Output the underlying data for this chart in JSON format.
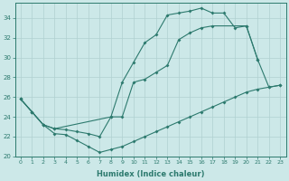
{
  "xlabel": "Humidex (Indice chaleur)",
  "bg_color": "#cce8e8",
  "line_color": "#2d7a6e",
  "grid_color": "#b0d0d0",
  "xlim": [
    -0.5,
    23.5
  ],
  "ylim": [
    20,
    35.5
  ],
  "yticks": [
    20,
    22,
    24,
    26,
    28,
    30,
    32,
    34
  ],
  "xticks": [
    0,
    1,
    2,
    3,
    4,
    5,
    6,
    7,
    8,
    9,
    10,
    11,
    12,
    13,
    14,
    15,
    16,
    17,
    18,
    19,
    20,
    21,
    22,
    23
  ],
  "series": [
    {
      "x": [
        0,
        1,
        2,
        3,
        4,
        5,
        6,
        7,
        8,
        9,
        10,
        11,
        12,
        13,
        14,
        15,
        16,
        17,
        18,
        19,
        20,
        21
      ],
      "y": [
        25.8,
        24.5,
        23.2,
        22.8,
        22.7,
        22.5,
        22.3,
        22.0,
        24.0,
        27.5,
        29.5,
        31.5,
        32.3,
        34.3,
        34.5,
        34.7,
        35.0,
        34.5,
        34.5,
        33.0,
        33.2,
        29.8
      ]
    },
    {
      "x": [
        0,
        1,
        2,
        3,
        8,
        9,
        10,
        11,
        12,
        13,
        14,
        15,
        16,
        17,
        20,
        21,
        22,
        23
      ],
      "y": [
        25.8,
        24.5,
        23.2,
        22.8,
        24.0,
        24.0,
        27.5,
        27.8,
        28.5,
        29.2,
        31.8,
        32.5,
        33.0,
        33.2,
        33.2,
        29.8,
        27.0,
        27.2
      ]
    },
    {
      "x": [
        0,
        1,
        2,
        3,
        4,
        5,
        6,
        7,
        8,
        9,
        10,
        11,
        12,
        13,
        14,
        15,
        16,
        17,
        18,
        19,
        20,
        21,
        22,
        23
      ],
      "y": [
        25.8,
        24.5,
        23.2,
        22.3,
        22.2,
        21.6,
        21.0,
        20.4,
        20.7,
        21.0,
        21.5,
        22.0,
        22.5,
        23.0,
        23.5,
        24.0,
        24.5,
        25.0,
        25.5,
        26.0,
        26.5,
        26.8,
        27.0,
        27.2
      ]
    }
  ]
}
